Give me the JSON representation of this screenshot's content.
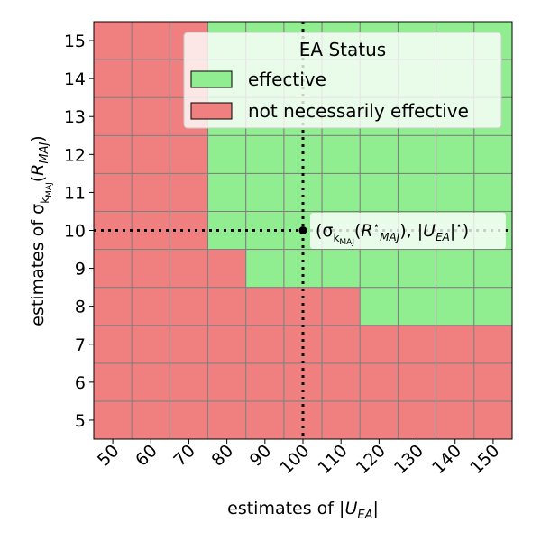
{
  "chart_data": {
    "type": "heatmap",
    "xlabel": "estimates of |U_EA|",
    "ylabel": "estimates of σ_k_MAJ(R_MAJ)",
    "x": [
      50,
      60,
      70,
      80,
      90,
      100,
      110,
      120,
      130,
      140,
      150
    ],
    "y": [
      5,
      6,
      7,
      8,
      9,
      10,
      11,
      12,
      13,
      14,
      15
    ],
    "xlim": [
      45,
      155
    ],
    "ylim": [
      4.5,
      15.5
    ],
    "grid": true,
    "values_rows_description": "rows indexed by y (5..15), columns by x (50..150); 1 = effective, 0 = not necessarily effective",
    "values": [
      [
        0,
        0,
        0,
        0,
        0,
        0,
        0,
        0,
        0,
        0,
        0
      ],
      [
        0,
        0,
        0,
        0,
        0,
        0,
        0,
        0,
        0,
        0,
        0
      ],
      [
        0,
        0,
        0,
        0,
        0,
        0,
        0,
        0,
        0,
        0,
        0
      ],
      [
        0,
        0,
        0,
        0,
        0,
        0,
        0,
        1,
        1,
        1,
        1
      ],
      [
        0,
        0,
        0,
        0,
        1,
        1,
        1,
        1,
        1,
        1,
        1
      ],
      [
        0,
        0,
        0,
        1,
        1,
        1,
        1,
        1,
        1,
        1,
        1
      ],
      [
        0,
        0,
        0,
        1,
        1,
        1,
        1,
        1,
        1,
        1,
        1
      ],
      [
        0,
        0,
        0,
        1,
        1,
        1,
        1,
        1,
        1,
        1,
        1
      ],
      [
        0,
        0,
        0,
        1,
        1,
        1,
        1,
        1,
        1,
        1,
        1
      ],
      [
        0,
        0,
        0,
        1,
        1,
        1,
        1,
        1,
        1,
        1,
        1
      ],
      [
        0,
        0,
        0,
        1,
        1,
        1,
        1,
        1,
        1,
        1,
        1
      ]
    ],
    "categories_legend": [
      {
        "value": 1,
        "label": "effective",
        "color": "#90ee90"
      },
      {
        "value": 0,
        "label": "not necessarily effective",
        "color": "#f08080"
      }
    ],
    "legend_title": "EA Status",
    "legend_position": "top-right",
    "reference_point": {
      "x": 100,
      "y": 10,
      "label": "(σ_k_MAJ(R*_MAJ), |U_EA|*)"
    },
    "reference_lines": {
      "vertical_x": 100,
      "horizontal_y": 10,
      "style": "dotted"
    }
  },
  "colors": {
    "effective": "#90ee90",
    "not_effective": "#f08080",
    "grid": "#808080"
  }
}
